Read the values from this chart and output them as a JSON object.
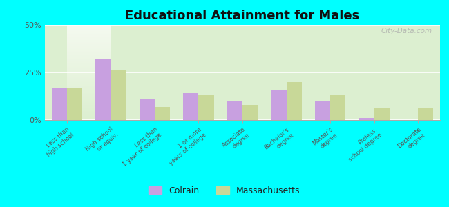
{
  "title": "Educational Attainment for Males",
  "categories": [
    "Less than\nhigh school",
    "High school\nor equiv.",
    "Less than\n1 year of college",
    "1 or more\nyears of college",
    "Associate\ndegree",
    "Bachelor's\ndegree",
    "Master's\ndegree",
    "Profess.\nschool degree",
    "Doctorate\ndegree"
  ],
  "colrain_values": [
    17,
    32,
    11,
    14,
    10,
    16,
    10,
    1,
    0
  ],
  "massachusetts_values": [
    17,
    26,
    7,
    13,
    8,
    20,
    13,
    6,
    6
  ],
  "colrain_color": "#c8a0e0",
  "massachusetts_color": "#c8d898",
  "ylim": [
    0,
    50
  ],
  "yticks": [
    0,
    25,
    50
  ],
  "ytick_labels": [
    "0%",
    "25%",
    "50%"
  ],
  "plot_bg_top": "#f5faf0",
  "plot_bg_bottom": "#dcefd0",
  "outer_background": "#00ffff",
  "legend_labels": [
    "Colrain",
    "Massachusetts"
  ],
  "watermark": "City-Data.com"
}
